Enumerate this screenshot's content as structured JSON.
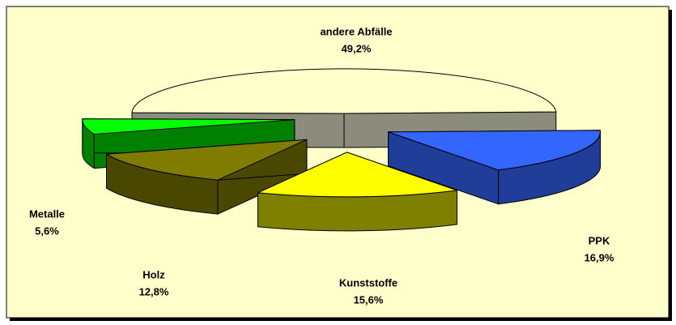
{
  "chart_data": {
    "type": "pie3d",
    "categories": [
      "andere Abfälle",
      "PPK",
      "Kunststoffe",
      "Holz",
      "Metalle"
    ],
    "values": [
      49.2,
      16.9,
      15.6,
      12.8,
      5.6
    ],
    "value_labels": [
      "49,2%",
      "16,9%",
      "15,6%",
      "12,8%",
      "5,6%"
    ],
    "colors": [
      "#ffffcc",
      "#3366ff",
      "#ffff00",
      "#807c00",
      "#00ff00"
    ],
    "side_colors": [
      "#8c8c7c",
      "#1f3d99",
      "#808000",
      "#4a4700",
      "#008000"
    ]
  }
}
